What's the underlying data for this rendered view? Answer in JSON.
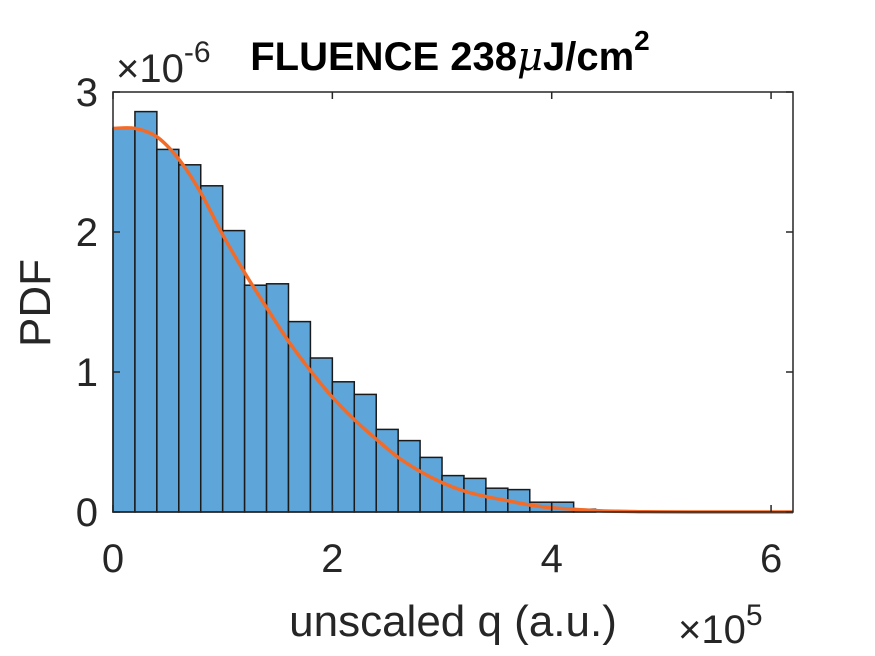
{
  "chart_data": {
    "type": "bar",
    "title": {
      "prefix": "FLUENCE 238",
      "mu": "μ",
      "unit": "J/cm",
      "sup": "2"
    },
    "xlabel": "unscaled q (a.u.)",
    "ylabel": "PDF",
    "x_multiplier": {
      "base": "×10",
      "exp": "5"
    },
    "y_multiplier": {
      "base": "×10",
      "exp": "-6"
    },
    "xlim": [
      0,
      6.2
    ],
    "ylim": [
      0,
      3
    ],
    "xticks": [
      "0",
      "2",
      "4",
      "6"
    ],
    "yticks": [
      "0",
      "1",
      "2",
      "3"
    ],
    "grid": false,
    "bin_width": 0.2,
    "bins": [
      {
        "x0": 0.0,
        "value": 2.74
      },
      {
        "x0": 0.2,
        "value": 2.86
      },
      {
        "x0": 0.4,
        "value": 2.59
      },
      {
        "x0": 0.6,
        "value": 2.48
      },
      {
        "x0": 0.8,
        "value": 2.33
      },
      {
        "x0": 1.0,
        "value": 2.01
      },
      {
        "x0": 1.2,
        "value": 1.62
      },
      {
        "x0": 1.4,
        "value": 1.63
      },
      {
        "x0": 1.6,
        "value": 1.36
      },
      {
        "x0": 1.8,
        "value": 1.1
      },
      {
        "x0": 2.0,
        "value": 0.93
      },
      {
        "x0": 2.2,
        "value": 0.84
      },
      {
        "x0": 2.4,
        "value": 0.59
      },
      {
        "x0": 2.6,
        "value": 0.51
      },
      {
        "x0": 2.8,
        "value": 0.39
      },
      {
        "x0": 3.0,
        "value": 0.26
      },
      {
        "x0": 3.2,
        "value": 0.24
      },
      {
        "x0": 3.4,
        "value": 0.17
      },
      {
        "x0": 3.6,
        "value": 0.16
      },
      {
        "x0": 3.8,
        "value": 0.07
      },
      {
        "x0": 4.0,
        "value": 0.07
      },
      {
        "x0": 4.2,
        "value": 0.02
      }
    ],
    "fit_curve": {
      "type": "line",
      "x": [
        0,
        0.2,
        0.4,
        0.6,
        0.8,
        1.0,
        1.2,
        1.4,
        1.6,
        1.8,
        2.0,
        2.2,
        2.4,
        2.6,
        2.8,
        3.0,
        3.2,
        3.4,
        3.6,
        3.8,
        4.0,
        4.2,
        4.4,
        4.6,
        4.8,
        5.0,
        5.4,
        5.8,
        6.2
      ],
      "y": [
        2.74,
        2.74,
        2.68,
        2.52,
        2.28,
        1.98,
        1.71,
        1.46,
        1.22,
        1.01,
        0.82,
        0.66,
        0.52,
        0.39,
        0.29,
        0.21,
        0.15,
        0.11,
        0.08,
        0.05,
        0.03,
        0.02,
        0.01,
        0.005,
        0.002,
        0.001,
        0,
        0,
        0
      ],
      "color": "#f26b28"
    },
    "bar_color": "#5ea6d9",
    "bar_edge_color": "#1a1a1a"
  }
}
